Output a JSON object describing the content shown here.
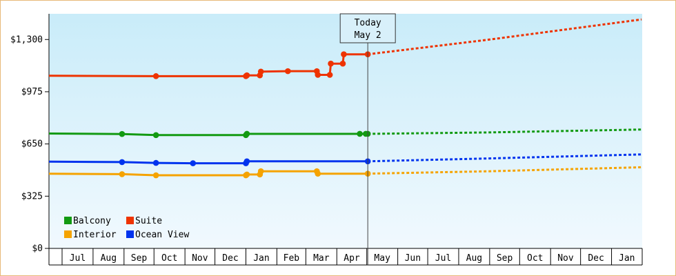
{
  "chart_data": {
    "type": "line",
    "title": "",
    "xlabel": "",
    "ylabel": "",
    "ylim": [
      0,
      1460
    ],
    "yticks": [
      {
        "value": 0,
        "label": "$0"
      },
      {
        "value": 325,
        "label": "$325"
      },
      {
        "value": 650,
        "label": "$650"
      },
      {
        "value": 975,
        "label": "$975"
      },
      {
        "value": 1300,
        "label": "$1,300"
      }
    ],
    "x_axis": {
      "start_date": "2015-06-08",
      "end_date": "2016-01-31",
      "months": [
        {
          "label": "Jul",
          "date": "2015-07-01"
        },
        {
          "label": "Aug",
          "date": "2015-08-01"
        },
        {
          "label": "Sep",
          "date": "2015-09-01"
        },
        {
          "label": "Oct",
          "date": "2015-10-01"
        },
        {
          "label": "Nov",
          "date": "2015-11-01"
        },
        {
          "label": "Dec",
          "date": "2015-12-01"
        },
        {
          "label": "Jan",
          "date": "2016-01-01"
        },
        {
          "label": "Feb",
          "date": "2016-02-01"
        },
        {
          "label": "Mar",
          "date": "2016-03-01"
        },
        {
          "label": "Apr",
          "date": "2016-04-01"
        },
        {
          "label": "May",
          "date": "2016-05-01"
        },
        {
          "label": "Jun",
          "date": "2016-06-01"
        },
        {
          "label": "Jul",
          "date": "2016-07-01"
        },
        {
          "label": "Aug",
          "date": "2016-08-01"
        },
        {
          "label": "Sep",
          "date": "2016-09-01"
        },
        {
          "label": "Oct",
          "date": "2016-10-01"
        },
        {
          "label": "Nov",
          "date": "2016-11-01"
        },
        {
          "label": "Dec",
          "date": "2016-12-01"
        },
        {
          "label": "Jan",
          "date": "2017-01-01"
        }
      ]
    },
    "today_marker": {
      "line1": "Today",
      "line2": "May 2",
      "date": "2016-05-02"
    },
    "grid": false,
    "legend_position": "bottom-left",
    "series": [
      {
        "name": "Balcony",
        "color": "#129a12",
        "history": [
          {
            "x": "2015-05-27",
            "y": 610,
            "marker": true
          },
          {
            "x": "2015-06-14",
            "y": 610,
            "marker": true
          },
          {
            "x": "2015-06-15",
            "y": 715,
            "marker": true
          },
          {
            "x": "2015-08-30",
            "y": 712,
            "marker": true
          },
          {
            "x": "2015-10-03",
            "y": 705,
            "marker": true
          },
          {
            "x": "2016-01-01",
            "y": 705,
            "marker": true
          },
          {
            "x": "2016-01-02",
            "y": 713,
            "marker": true
          },
          {
            "x": "2016-04-24",
            "y": 713,
            "marker": true
          },
          {
            "x": "2016-04-30",
            "y": 713,
            "marker": true
          },
          {
            "x": "2016-05-02",
            "y": 713,
            "marker": true
          }
        ],
        "forecast": [
          {
            "x": "2016-05-02",
            "y": 713
          },
          {
            "x": "2016-09-01",
            "y": 722
          },
          {
            "x": "2017-01-31",
            "y": 740
          }
        ]
      },
      {
        "name": "Suite",
        "color": "#ee3300",
        "history": [
          {
            "x": "2015-05-27",
            "y": 965,
            "marker": true
          },
          {
            "x": "2015-06-14",
            "y": 965,
            "marker": true
          },
          {
            "x": "2015-06-15",
            "y": 1075,
            "marker": true
          },
          {
            "x": "2015-10-03",
            "y": 1072,
            "marker": true
          },
          {
            "x": "2016-01-01",
            "y": 1072,
            "marker": true
          },
          {
            "x": "2016-01-02",
            "y": 1077,
            "marker": true
          },
          {
            "x": "2016-01-15",
            "y": 1077,
            "marker": true
          },
          {
            "x": "2016-01-16",
            "y": 1100,
            "marker": true
          },
          {
            "x": "2016-02-12",
            "y": 1103,
            "marker": true
          },
          {
            "x": "2016-03-12",
            "y": 1103,
            "marker": true
          },
          {
            "x": "2016-03-13",
            "y": 1080,
            "marker": true
          },
          {
            "x": "2016-03-25",
            "y": 1080,
            "marker": true
          },
          {
            "x": "2016-03-26",
            "y": 1150,
            "marker": true
          },
          {
            "x": "2016-04-07",
            "y": 1150,
            "marker": true
          },
          {
            "x": "2016-04-08",
            "y": 1208,
            "marker": true
          },
          {
            "x": "2016-05-02",
            "y": 1208,
            "marker": true
          }
        ],
        "forecast": [
          {
            "x": "2016-05-02",
            "y": 1208
          },
          {
            "x": "2016-09-01",
            "y": 1300
          },
          {
            "x": "2017-01-31",
            "y": 1425
          }
        ]
      },
      {
        "name": "Interior",
        "color": "#f5a300",
        "history": [
          {
            "x": "2015-05-27",
            "y": 355,
            "marker": true
          },
          {
            "x": "2015-06-14",
            "y": 355,
            "marker": true
          },
          {
            "x": "2015-06-15",
            "y": 465,
            "marker": true
          },
          {
            "x": "2015-08-30",
            "y": 462,
            "marker": true
          },
          {
            "x": "2015-10-03",
            "y": 455,
            "marker": true
          },
          {
            "x": "2016-01-01",
            "y": 455,
            "marker": true
          },
          {
            "x": "2016-01-02",
            "y": 460,
            "marker": true
          },
          {
            "x": "2016-01-15",
            "y": 460,
            "marker": true
          },
          {
            "x": "2016-01-16",
            "y": 480,
            "marker": true
          },
          {
            "x": "2016-03-12",
            "y": 480,
            "marker": true
          },
          {
            "x": "2016-03-13",
            "y": 465,
            "marker": true
          },
          {
            "x": "2016-05-02",
            "y": 465,
            "marker": true
          }
        ],
        "forecast": [
          {
            "x": "2016-05-02",
            "y": 465
          },
          {
            "x": "2016-09-01",
            "y": 480
          },
          {
            "x": "2017-01-31",
            "y": 505
          }
        ]
      },
      {
        "name": "Ocean View",
        "color": "#0033ee",
        "history": [
          {
            "x": "2015-05-27",
            "y": 430,
            "marker": true
          },
          {
            "x": "2015-06-14",
            "y": 430,
            "marker": true
          },
          {
            "x": "2015-06-15",
            "y": 540,
            "marker": true
          },
          {
            "x": "2015-08-30",
            "y": 537,
            "marker": true
          },
          {
            "x": "2015-10-03",
            "y": 532,
            "marker": true
          },
          {
            "x": "2015-11-09",
            "y": 530,
            "marker": true
          },
          {
            "x": "2016-01-01",
            "y": 530,
            "marker": true
          },
          {
            "x": "2016-01-02",
            "y": 542,
            "marker": true
          },
          {
            "x": "2016-05-02",
            "y": 542,
            "marker": true
          }
        ],
        "forecast": [
          {
            "x": "2016-05-02",
            "y": 542
          },
          {
            "x": "2016-09-01",
            "y": 560
          },
          {
            "x": "2017-01-31",
            "y": 585
          }
        ]
      }
    ],
    "colors": {
      "background_top": "#c9ecf9",
      "background_bottom": "#f1f9fe",
      "frame_border": "#e8b878",
      "today_line": "#444444",
      "today_box_fill": "#d8f0fa"
    }
  }
}
